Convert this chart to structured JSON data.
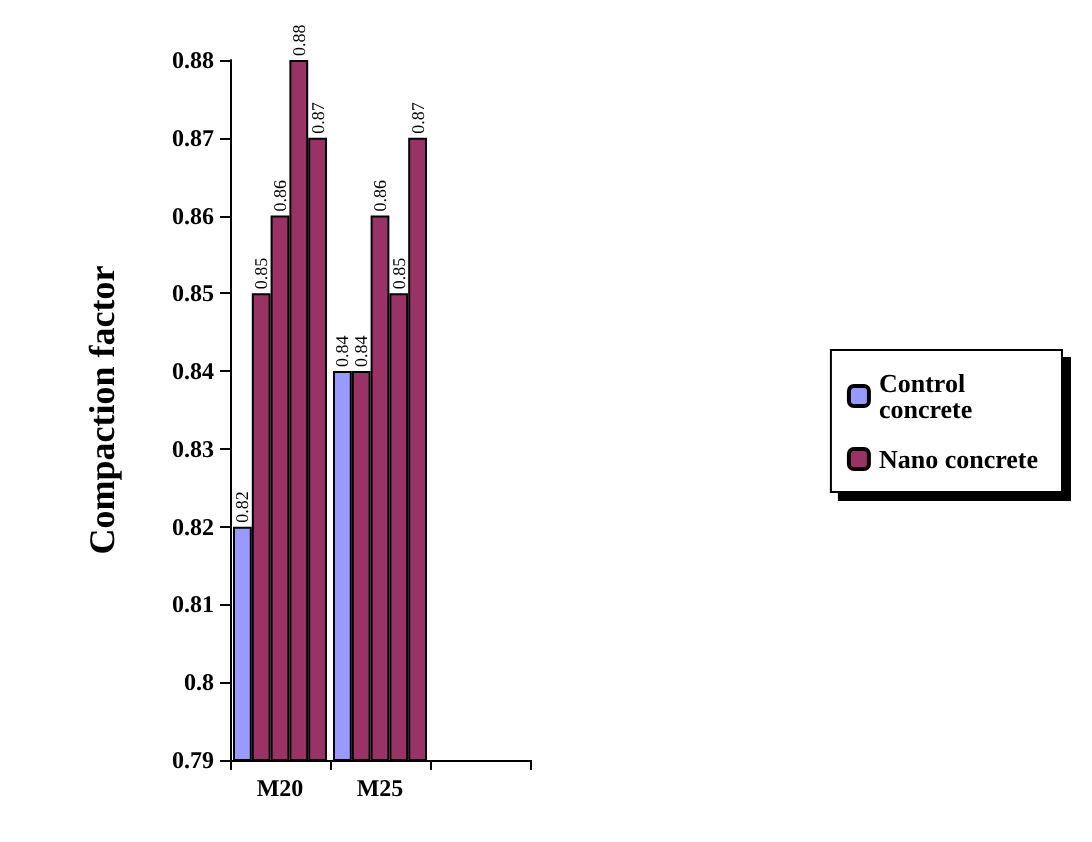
{
  "chart_data": {
    "type": "bar",
    "ylabel": "Compaction factor",
    "categories": [
      "M20",
      "M25",
      null
    ],
    "series": [
      {
        "name": "Control concrete",
        "color": "#9999ff",
        "values": [
          0.82,
          0.84,
          null
        ]
      },
      {
        "name": "Nano concrete",
        "color": "#993366",
        "values": [
          0.85,
          0.84,
          null
        ]
      },
      {
        "color": "#993366",
        "values": [
          0.86,
          0.86,
          null
        ]
      },
      {
        "color": "#993366",
        "values": [
          0.88,
          0.85,
          null
        ]
      },
      {
        "color": "#993366",
        "values": [
          0.87,
          0.87,
          null
        ]
      }
    ],
    "ylim": [
      0.79,
      0.88
    ],
    "yticks": [
      0.79,
      0.8,
      0.81,
      0.82,
      0.83,
      0.84,
      0.85,
      0.86,
      0.87,
      0.88
    ],
    "data_labels": true,
    "grid": false,
    "legend": "right"
  }
}
